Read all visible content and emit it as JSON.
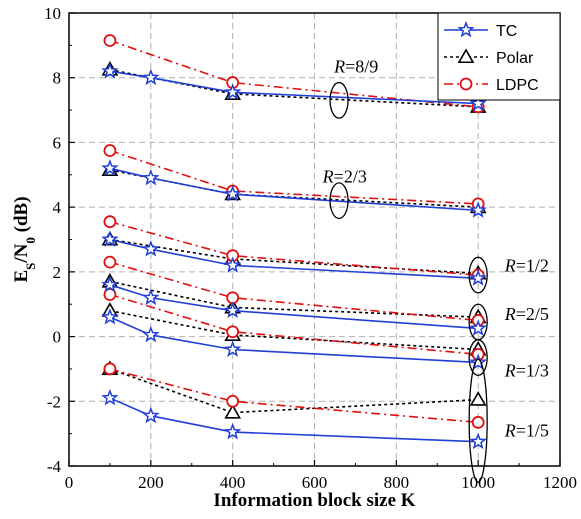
{
  "chart_data": {
    "type": "line",
    "xlabel": "Information block size K",
    "ylabel": {
      "main": "E",
      "sub1": "S",
      "mid": "/N",
      "sub2": "0",
      "tail": " (dB)"
    },
    "xlim": [
      0,
      1200
    ],
    "ylim": [
      -4,
      10
    ],
    "xticks": [
      0,
      200,
      400,
      600,
      800,
      1000,
      1200
    ],
    "yticks": [
      -4,
      -2,
      0,
      2,
      4,
      6,
      8,
      10
    ],
    "grid": true,
    "legend_position": "top-right",
    "series": [
      {
        "name": "TC",
        "color": "#1f3fd6",
        "marker": "star",
        "dash": "solid",
        "groups": [
          {
            "x": [
              100,
              200,
              400,
              1000
            ],
            "y": [
              8.2,
              8.0,
              7.55,
              7.2
            ]
          },
          {
            "x": [
              100,
              200,
              400,
              1000
            ],
            "y": [
              5.2,
              4.9,
              4.4,
              3.9
            ]
          },
          {
            "x": [
              100,
              200,
              400,
              1000
            ],
            "y": [
              3.0,
              2.7,
              2.2,
              1.8
            ]
          },
          {
            "x": [
              100,
              200,
              400,
              1000
            ],
            "y": [
              1.6,
              1.2,
              0.8,
              0.25
            ]
          },
          {
            "x": [
              100,
              200,
              400,
              1000
            ],
            "y": [
              0.6,
              0.05,
              -0.4,
              -0.8
            ]
          },
          {
            "x": [
              100,
              200,
              400,
              1000
            ],
            "y": [
              -1.9,
              -2.45,
              -2.95,
              -3.25
            ]
          }
        ]
      },
      {
        "name": "Polar",
        "color": "#000000",
        "marker": "triangle",
        "dash": "dotted",
        "groups": [
          {
            "x": [
              100,
              400,
              1000
            ],
            "y": [
              8.25,
              7.5,
              7.1
            ]
          },
          {
            "x": [
              100,
              400,
              1000
            ],
            "y": [
              5.15,
              4.4,
              4.0
            ]
          },
          {
            "x": [
              100,
              400,
              1000
            ],
            "y": [
              3.0,
              2.4,
              1.95
            ]
          },
          {
            "x": [
              100,
              400,
              1000
            ],
            "y": [
              1.7,
              0.9,
              0.6
            ]
          },
          {
            "x": [
              100,
              400,
              1000
            ],
            "y": [
              0.8,
              0.05,
              -0.4
            ]
          },
          {
            "x": [
              100,
              400,
              1000
            ],
            "y": [
              -1.0,
              -2.35,
              -1.95
            ]
          }
        ]
      },
      {
        "name": "LDPC",
        "color": "#e01010",
        "marker": "circle",
        "dash": "dashdot",
        "groups": [
          {
            "x": [
              100,
              400,
              1000
            ],
            "y": [
              9.15,
              7.85,
              7.1
            ]
          },
          {
            "x": [
              100,
              400,
              1000
            ],
            "y": [
              5.75,
              4.5,
              4.1
            ]
          },
          {
            "x": [
              100,
              400,
              1000
            ],
            "y": [
              3.55,
              2.5,
              1.9
            ]
          },
          {
            "x": [
              100,
              400,
              1000
            ],
            "y": [
              2.3,
              1.2,
              0.5
            ]
          },
          {
            "x": [
              100,
              400,
              1000
            ],
            "y": [
              1.3,
              0.15,
              -0.55
            ]
          },
          {
            "x": [
              100,
              400,
              1000
            ],
            "y": [
              -1.0,
              -2.0,
              -2.65
            ]
          }
        ]
      }
    ],
    "annotations": [
      {
        "text": "8/9",
        "prefix": "R",
        "eq": "=",
        "x": 648,
        "y": 8.35,
        "ellipse_x": 660,
        "ellipse_y": 7.3,
        "ellipse_h": 0.55
      },
      {
        "text": "2/3",
        "prefix": "R",
        "eq": "=",
        "x": 620,
        "y": 4.95,
        "ellipse_x": 660,
        "ellipse_y": 4.2,
        "ellipse_h": 0.55
      },
      {
        "text": "1/2",
        "prefix": "R",
        "eq": "=",
        "x": 1065,
        "y": 2.2,
        "ellipse_x": 1000,
        "ellipse_y": 1.9,
        "ellipse_h": 0.55
      },
      {
        "text": "2/5",
        "prefix": "R",
        "eq": "=",
        "x": 1065,
        "y": 0.7,
        "ellipse_x": 1000,
        "ellipse_y": 0.45,
        "ellipse_h": 0.55
      },
      {
        "text": "1/3",
        "prefix": "R",
        "eq": "=",
        "x": 1065,
        "y": -1.05,
        "ellipse_x": 1000,
        "ellipse_y": -0.65,
        "ellipse_h": 0.55
      },
      {
        "text": "1/5",
        "prefix": "R",
        "eq": "=",
        "x": 1065,
        "y": -2.9,
        "ellipse_x": 1000,
        "ellipse_y": -2.6,
        "ellipse_h": 1.9
      }
    ]
  }
}
